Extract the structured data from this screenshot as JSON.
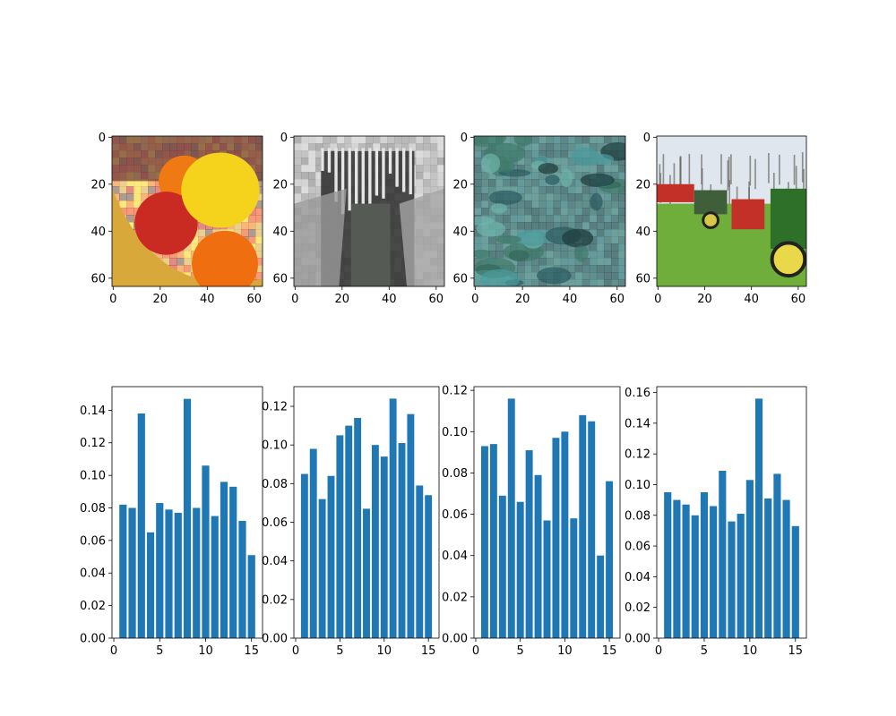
{
  "figure": {
    "background": "#ffffff",
    "bar_color": "#1f77b4"
  },
  "images": [
    {
      "content": "fruit bowl with lemon, red apple and oranges",
      "xlim": [
        0,
        63
      ],
      "ylim": [
        63,
        0
      ],
      "xticks": [
        0,
        20,
        40,
        60
      ],
      "yticks": [
        0,
        20,
        40,
        60
      ],
      "palette": [
        "#e84a12",
        "#f5d31c",
        "#c92a22",
        "#ef7a14",
        "#d9a83a",
        "#6a4a3a"
      ]
    },
    {
      "content": "grayscale stone archway with icicles",
      "xlim": [
        0,
        63
      ],
      "ylim": [
        63,
        0
      ],
      "xticks": [
        0,
        20,
        40,
        60
      ],
      "yticks": [
        0,
        20,
        40,
        60
      ],
      "palette": [
        "#2b2b2b",
        "#dcdcdc",
        "#777777",
        "#b9b9b9",
        "#4a4f4a"
      ]
    },
    {
      "content": "teal and green textured water surface",
      "xlim": [
        0,
        63
      ],
      "ylim": [
        63,
        0
      ],
      "xticks": [
        0,
        20,
        40,
        60
      ],
      "yticks": [
        0,
        20,
        40,
        60
      ],
      "palette": [
        "#2a5a5f",
        "#4a9a9c",
        "#1d3a3a",
        "#6db3a8",
        "#3f7a6a"
      ]
    },
    {
      "content": "red and green tractors parked on grass under trees",
      "xlim": [
        0,
        63
      ],
      "ylim": [
        63,
        0
      ],
      "xticks": [
        0,
        20,
        40,
        60
      ],
      "yticks": [
        0,
        20,
        40,
        60
      ],
      "palette": [
        "#dfe6ee",
        "#8a8a80",
        "#6fae3a",
        "#3f7f2a",
        "#c23028",
        "#2e6f2a",
        "#e8d84a"
      ]
    }
  ],
  "chart_data": [
    {
      "type": "bar",
      "x": [
        1,
        2,
        3,
        4,
        5,
        6,
        7,
        8,
        9,
        10,
        11,
        12,
        13,
        14,
        15
      ],
      "values": [
        0.082,
        0.08,
        0.138,
        0.065,
        0.083,
        0.079,
        0.077,
        0.147,
        0.08,
        0.106,
        0.075,
        0.096,
        0.093,
        0.072,
        0.051
      ],
      "xlim": [
        -0.2,
        16.2
      ],
      "ylim": [
        0,
        0.1545
      ],
      "xticks": [
        0,
        5,
        10,
        15
      ],
      "yticks": [
        0.0,
        0.02,
        0.04,
        0.06,
        0.08,
        0.1,
        0.12,
        0.14
      ],
      "ytick_labels": [
        "0.00",
        "0.02",
        "0.04",
        "0.06",
        "0.08",
        "0.10",
        "0.12",
        "0.14"
      ],
      "grid": false,
      "title": "",
      "xlabel": "",
      "ylabel": ""
    },
    {
      "type": "bar",
      "x": [
        1,
        2,
        3,
        4,
        5,
        6,
        7,
        8,
        9,
        10,
        11,
        12,
        13,
        14,
        15
      ],
      "values": [
        0.085,
        0.098,
        0.072,
        0.084,
        0.105,
        0.11,
        0.114,
        0.067,
        0.1,
        0.094,
        0.124,
        0.101,
        0.116,
        0.079,
        0.074
      ],
      "xlim": [
        -0.2,
        16.2
      ],
      "ylim": [
        0,
        0.1302
      ],
      "xticks": [
        0,
        5,
        10,
        15
      ],
      "yticks": [
        0.0,
        0.02,
        0.04,
        0.06,
        0.08,
        0.1,
        0.12
      ],
      "ytick_labels": [
        "0.00",
        "0.02",
        "0.04",
        "0.06",
        "0.08",
        "0.10",
        "0.12"
      ],
      "grid": false,
      "title": "",
      "xlabel": "",
      "ylabel": ""
    },
    {
      "type": "bar",
      "x": [
        1,
        2,
        3,
        4,
        5,
        6,
        7,
        8,
        9,
        10,
        11,
        12,
        13,
        14,
        15
      ],
      "values": [
        0.093,
        0.094,
        0.069,
        0.116,
        0.066,
        0.091,
        0.079,
        0.057,
        0.097,
        0.1,
        0.058,
        0.108,
        0.105,
        0.04,
        0.076
      ],
      "xlim": [
        -0.2,
        16.2
      ],
      "ylim": [
        0,
        0.1218
      ],
      "xticks": [
        0,
        5,
        10,
        15
      ],
      "yticks": [
        0.0,
        0.02,
        0.04,
        0.06,
        0.08,
        0.1,
        0.12
      ],
      "ytick_labels": [
        "0.00",
        "0.02",
        "0.04",
        "0.06",
        "0.08",
        "0.10",
        "0.12"
      ],
      "grid": false,
      "title": "",
      "xlabel": "",
      "ylabel": ""
    },
    {
      "type": "bar",
      "x": [
        1,
        2,
        3,
        4,
        5,
        6,
        7,
        8,
        9,
        10,
        11,
        12,
        13,
        14,
        15
      ],
      "values": [
        0.095,
        0.09,
        0.087,
        0.08,
        0.095,
        0.086,
        0.109,
        0.076,
        0.081,
        0.103,
        0.156,
        0.091,
        0.107,
        0.09,
        0.073
      ],
      "xlim": [
        -0.2,
        16.2
      ],
      "ylim": [
        0,
        0.1638
      ],
      "xticks": [
        0,
        5,
        10,
        15
      ],
      "yticks": [
        0.0,
        0.02,
        0.04,
        0.06,
        0.08,
        0.1,
        0.12,
        0.14,
        0.16
      ],
      "ytick_labels": [
        "0.00",
        "0.02",
        "0.04",
        "0.06",
        "0.08",
        "0.10",
        "0.12",
        "0.14",
        "0.16"
      ],
      "grid": false,
      "title": "",
      "xlabel": "",
      "ylabel": ""
    }
  ]
}
